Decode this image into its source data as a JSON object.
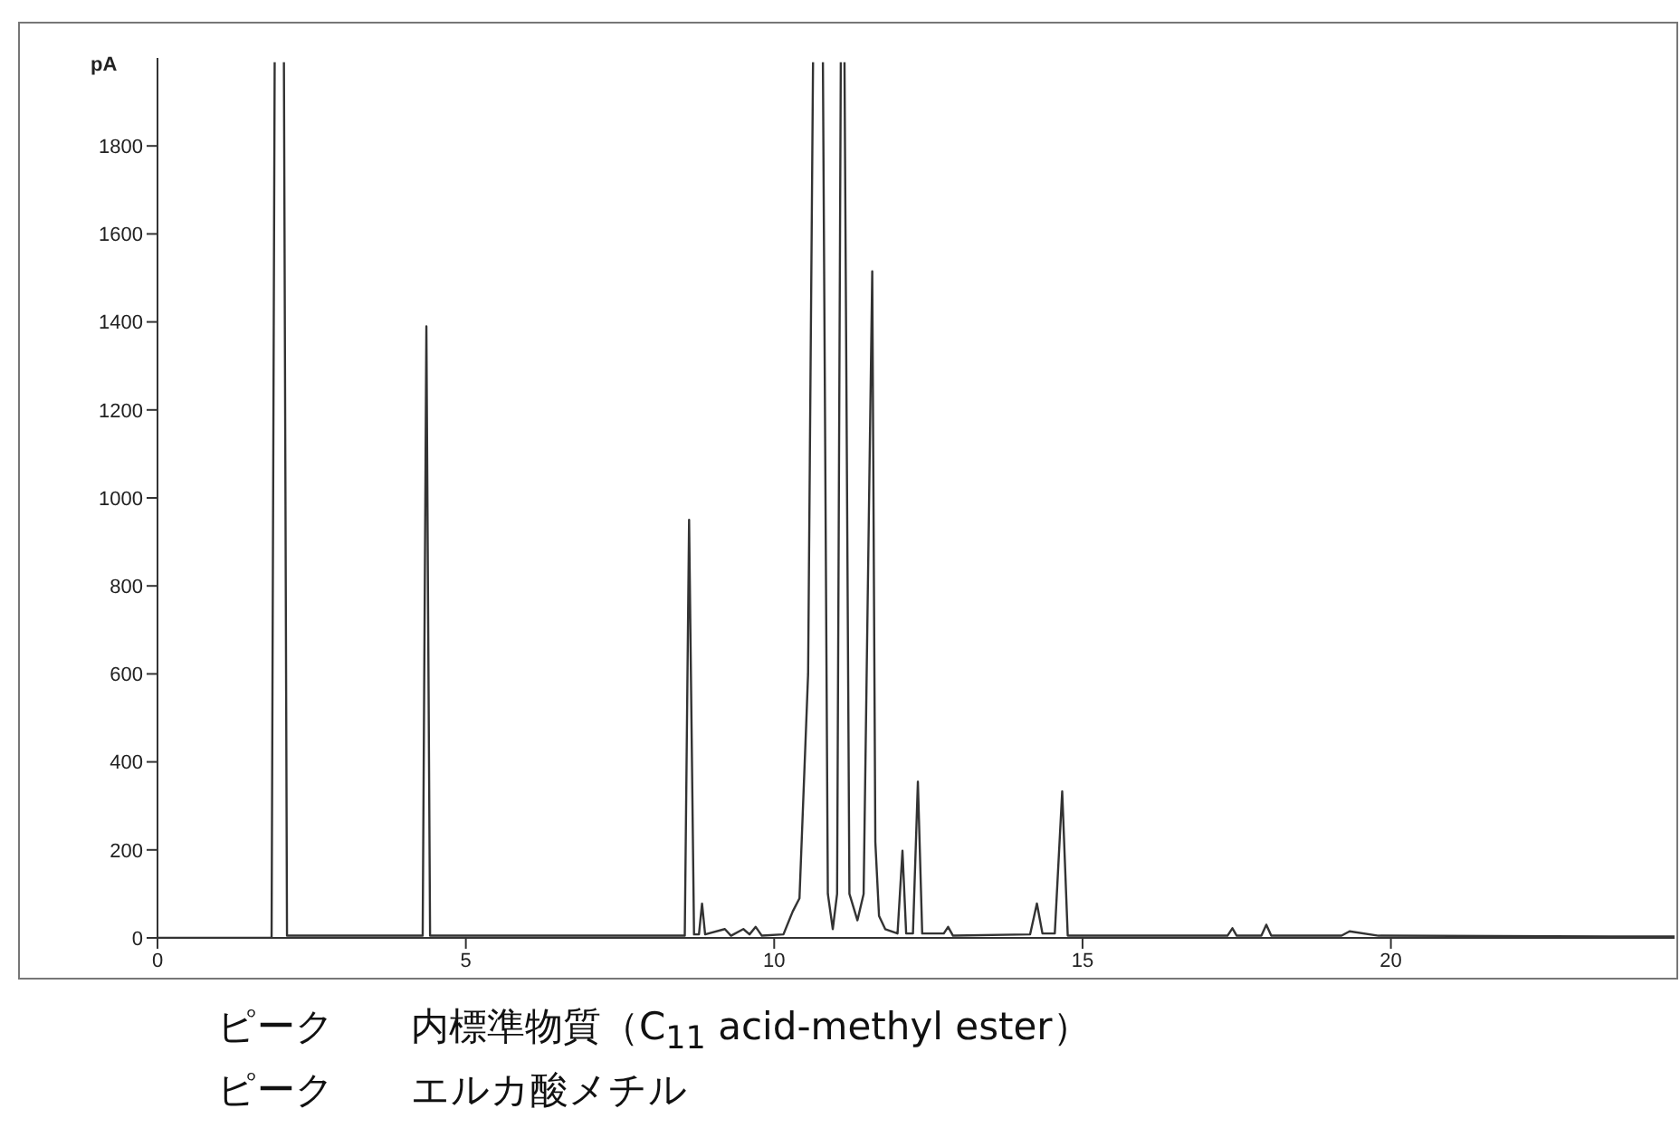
{
  "chart_data": {
    "type": "line",
    "ylabel": "pA",
    "x": [
      0,
      1.85,
      1.9,
      1.97,
      2.05,
      2.1,
      3.6,
      4.3,
      4.36,
      4.42,
      6.8,
      8.55,
      8.62,
      8.7,
      8.78,
      8.83,
      8.88,
      9.2,
      9.3,
      9.5,
      9.6,
      9.7,
      9.8,
      10.15,
      10.3,
      10.41,
      10.55,
      10.63,
      10.71,
      10.79,
      10.87,
      10.95,
      11.02,
      11.08,
      11.11,
      11.14,
      11.22,
      11.35,
      11.45,
      11.59,
      11.64,
      11.7,
      11.8,
      12.0,
      12.08,
      12.14,
      12.25,
      12.33,
      12.4,
      12.75,
      12.82,
      12.9,
      14.15,
      14.26,
      14.35,
      14.55,
      14.67,
      14.76,
      17.35,
      17.43,
      17.5,
      17.9,
      17.98,
      18.06,
      19.2,
      19.33,
      19.8,
      24.6
    ],
    "series": [
      {
        "color": "#333333",
        "values": [
          0,
          0,
          1990,
          null,
          1990,
          5,
          5,
          5,
          1390,
          5,
          5,
          5,
          950,
          8,
          8,
          78,
          8,
          20,
          5,
          20,
          8,
          25,
          5,
          8,
          60,
          90,
          600,
          1990,
          null,
          1990,
          100,
          20,
          100,
          1990,
          null,
          1990,
          100,
          40,
          100,
          1515,
          218,
          50,
          20,
          10,
          198,
          10,
          10,
          355,
          10,
          10,
          25,
          5,
          8,
          78,
          10,
          10,
          333,
          5,
          5,
          22,
          5,
          5,
          30,
          5,
          5,
          15,
          5,
          3
        ]
      }
    ],
    "xlim": [
      0,
      24.6
    ],
    "xticks": [
      0,
      5,
      10,
      15,
      20
    ],
    "ylim": [
      0,
      2000
    ],
    "yticks": [
      0,
      200,
      400,
      600,
      800,
      1000,
      1200,
      1400,
      1600,
      1800
    ],
    "grid": false,
    "legend": false,
    "marker": "none",
    "line_style": "solid",
    "annotations": [
      "ピーク　　内標準物質（C$_{11}$ acid-methyl ester）",
      "ピーク　　エルカ酸メチル"
    ]
  }
}
